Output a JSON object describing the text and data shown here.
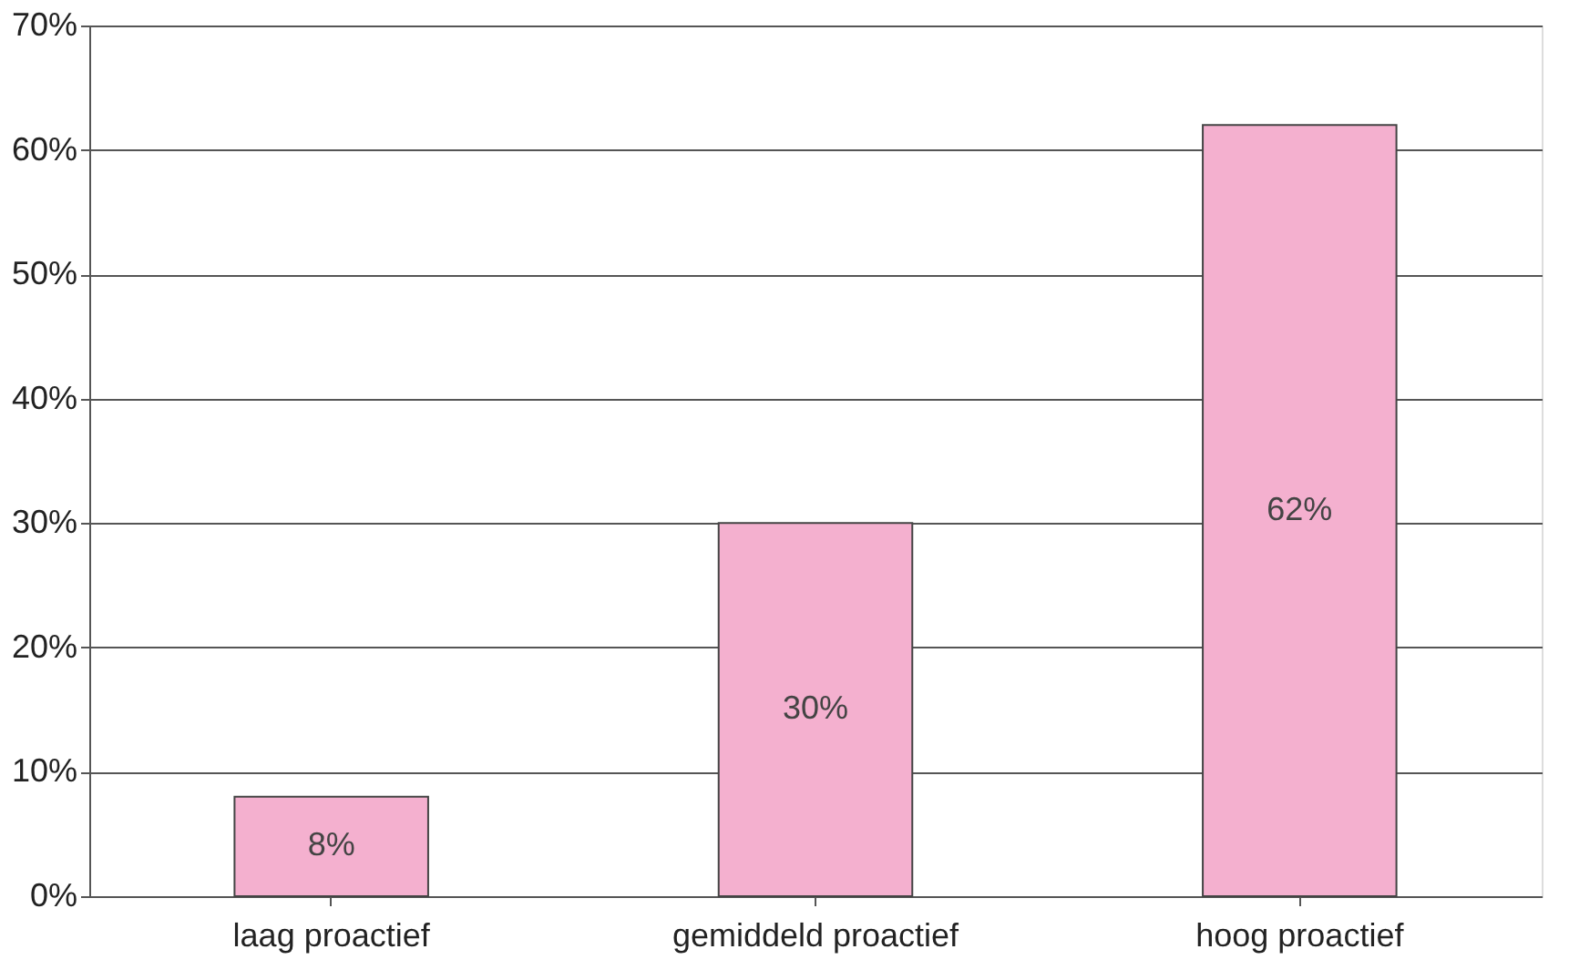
{
  "chart_data": {
    "type": "bar",
    "categories": [
      "laag proactief",
      "gemiddeld proactief",
      "hoog proactief"
    ],
    "values": [
      8,
      30,
      62
    ],
    "value_labels": [
      "8%",
      "30%",
      "62%"
    ],
    "color": "#f4b0cf",
    "ylim": [
      0,
      70
    ],
    "yticks": [
      {
        "value": 0,
        "label": "0%"
      },
      {
        "value": 10,
        "label": "10%"
      },
      {
        "value": 20,
        "label": "20%"
      },
      {
        "value": 30,
        "label": "30%"
      },
      {
        "value": 40,
        "label": "40%"
      },
      {
        "value": 50,
        "label": "50%"
      },
      {
        "value": 60,
        "label": "60%"
      },
      {
        "value": 70,
        "label": "70%"
      }
    ],
    "grid": "y"
  }
}
